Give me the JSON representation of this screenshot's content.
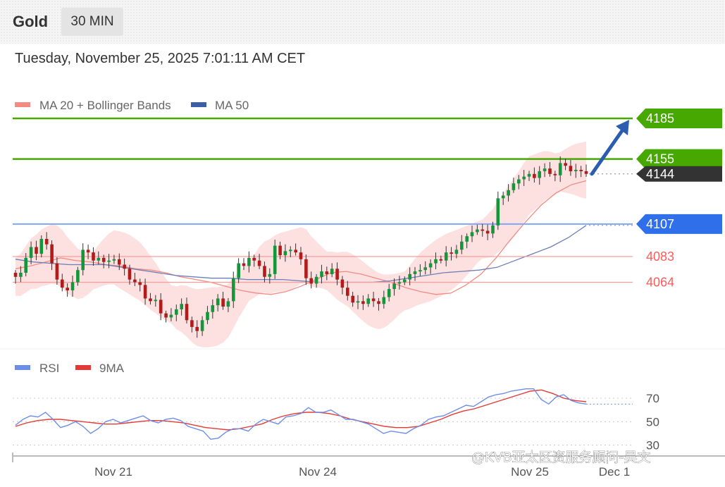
{
  "header": {
    "instrument": "Gold",
    "interval": "30 MIN",
    "timestamp": "Tuesday, November 25, 2025 7:01:11 AM CET"
  },
  "chart_data": [
    {
      "type": "candlestick",
      "legend": [
        {
          "label": "MA 20 + Bollinger Bands",
          "color": "#f28b82"
        },
        {
          "label": "MA 50",
          "color": "#3a5ea8"
        }
      ],
      "x_ticks": [
        "Nov 21",
        "Nov 24",
        "Nov 25",
        "Dec 1"
      ],
      "ylim": [
        4020,
        4210
      ],
      "levels": [
        {
          "value": 4185,
          "label": "4185",
          "color": "#46a800",
          "style": "resistance-tag"
        },
        {
          "value": 4155,
          "label": "4155",
          "color": "#46a800",
          "style": "resistance-tag"
        },
        {
          "value": 4144,
          "label": "4144",
          "color": "#333333",
          "style": "current-price-tag"
        },
        {
          "value": 4107,
          "label": "4107",
          "color": "#2f6fea",
          "style": "support-tag"
        },
        {
          "value": 4083,
          "label": "4083",
          "color": "#ff5a5a",
          "style": "thin-line"
        },
        {
          "value": 4064,
          "label": "4064",
          "color": "#ff5a5a",
          "style": "thin-line"
        }
      ],
      "projection": {
        "from": 4144,
        "to": 4185,
        "direction": "up",
        "color": "#2a5db0"
      },
      "close_approx": [
        4068,
        4071,
        4082,
        4090,
        4085,
        4096,
        4092,
        4078,
        4066,
        4060,
        4058,
        4064,
        4073,
        4088,
        4086,
        4080,
        4082,
        4079,
        4080,
        4081,
        4077,
        4074,
        4066,
        4064,
        4062,
        4052,
        4050,
        4051,
        4041,
        4038,
        4040,
        4044,
        4048,
        4036,
        4031,
        4028,
        4036,
        4042,
        4047,
        4052,
        4046,
        4050,
        4067,
        4078,
        4076,
        4082,
        4080,
        4076,
        4068,
        4070,
        4091,
        4084,
        4087,
        4088,
        4086,
        4081,
        4067,
        4063,
        4068,
        4072,
        4070,
        4074,
        4066,
        4060,
        4054,
        4049,
        4050,
        4048,
        4052,
        4050,
        4048,
        4053,
        4059,
        4063,
        4064,
        4066,
        4070,
        4072,
        4073,
        4075,
        4078,
        4081,
        4080,
        4086,
        4085,
        4088,
        4094,
        4098,
        4101,
        4103,
        4102,
        4100,
        4106,
        4126,
        4128,
        4132,
        4137,
        4140,
        4142,
        4144,
        4141,
        4146,
        4148,
        4144,
        4143,
        4152,
        4150,
        4146,
        4147,
        4146,
        4144
      ],
      "ma20_approx": [
        4074,
        4076,
        4079,
        4082,
        4080,
        4079,
        4077,
        4076,
        4074,
        4073,
        4071,
        4068,
        4066,
        4064,
        4061,
        4058,
        4056,
        4055,
        4057,
        4061,
        4066,
        4071,
        4072,
        4070,
        4067,
        4064,
        4060,
        4057,
        4055,
        4056,
        4062,
        4070,
        4082,
        4096,
        4109,
        4121,
        4130,
        4136,
        4139
      ],
      "ma50_approx": [
        4081,
        4079,
        4078,
        4077,
        4077,
        4077,
        4075,
        4073,
        4071,
        4069,
        4068,
        4067,
        4067,
        4066,
        4066,
        4066,
        4065,
        4064,
        4064,
        4064,
        4064,
        4065,
        4067,
        4069,
        4071,
        4072,
        4073,
        4075,
        4080,
        4085,
        4090,
        4097,
        4106
      ],
      "rsi_panel": {
        "legend": [
          {
            "label": "RSI",
            "color": "#6d8ee8"
          },
          {
            "label": "9MA",
            "color": "#e53935"
          }
        ],
        "levels": [
          "70",
          "50",
          "30"
        ],
        "ylim": [
          25,
          85
        ],
        "rsi_approx": [
          47,
          52,
          55,
          54,
          58,
          52,
          45,
          47,
          50,
          46,
          40,
          44,
          50,
          52,
          49,
          51,
          53,
          55,
          51,
          49,
          52,
          53,
          51,
          46,
          44,
          42,
          35,
          36,
          41,
          44,
          44,
          42,
          48,
          52,
          50,
          48,
          54,
          55,
          57,
          62,
          58,
          58,
          60,
          56,
          52,
          52,
          50,
          48,
          44,
          40,
          42,
          41,
          40,
          44,
          47,
          52,
          54,
          55,
          58,
          61,
          64,
          63,
          67,
          71,
          73,
          74,
          76,
          77,
          78,
          78,
          69,
          65,
          71,
          73,
          68,
          66,
          65
        ],
        "ma9_approx": [
          46,
          49,
          51,
          52,
          52,
          51,
          50,
          49,
          48,
          48,
          49,
          50,
          51,
          51,
          50,
          49,
          47,
          45,
          44,
          43,
          44,
          46,
          48,
          52,
          55,
          57,
          58,
          58,
          57,
          55,
          52,
          50,
          48,
          46,
          45,
          45,
          46,
          49,
          52,
          56,
          59,
          61,
          64,
          67,
          70,
          73,
          76,
          77,
          74,
          70,
          68,
          67
        ]
      }
    }
  ],
  "watermark": "@KVB亚太区资服务顾问-吴文"
}
